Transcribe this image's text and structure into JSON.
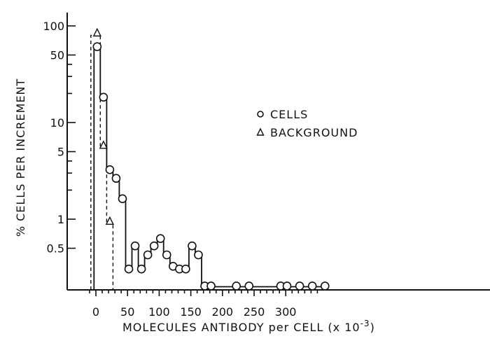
{
  "chart_data": {
    "type": "line",
    "xlabel_main": "MOLECULES ANTIBODY per CELL (x 10",
    "xlabel_exp": "-3",
    "xlabel_close": ")",
    "ylabel": "% CELLS PER INCREMENT",
    "x_scale": "linear",
    "y_scale": "log",
    "xlim": [
      -15,
      360
    ],
    "ylim": [
      0.2,
      200
    ],
    "x_ticks": [
      0,
      50,
      100,
      150,
      200,
      250,
      300
    ],
    "x_tick_labels": [
      "0",
      "50",
      "100",
      "150",
      "200",
      "250",
      "300"
    ],
    "x_minor_ticks": [
      -10,
      10,
      20,
      30,
      40,
      60,
      70,
      80,
      90,
      110,
      120,
      130,
      140,
      160,
      170,
      180,
      190,
      210,
      220,
      230,
      240,
      260,
      270,
      280,
      290,
      310,
      320,
      330,
      340,
      350
    ],
    "y_ticks": [
      0.5,
      1,
      5,
      10,
      50,
      100
    ],
    "y_tick_labels": [
      "0.5",
      "1",
      "5",
      "10",
      "50",
      "100"
    ],
    "y_minor_ticks": [
      2,
      3,
      4,
      20,
      30,
      40,
      200
    ],
    "step_width": 10,
    "series": [
      {
        "name": "CELLS",
        "marker": "circle",
        "style": "solid-step",
        "x": [
          2,
          12,
          22,
          32,
          42,
          52,
          62,
          72,
          82,
          92,
          102,
          112,
          122,
          132,
          142,
          152,
          162,
          172,
          182,
          222,
          242,
          292,
          302,
          322,
          342,
          362
        ],
        "values": [
          60,
          18,
          3.2,
          2.6,
          1.6,
          0.3,
          0.52,
          0.3,
          0.42,
          0.52,
          0.62,
          0.42,
          0.32,
          0.3,
          0.3,
          0.52,
          0.42,
          0.2,
          0.2,
          0.2,
          0.2,
          0.2,
          0.2,
          0.2,
          0.2,
          0.2
        ]
      },
      {
        "name": "BACKGROUND",
        "marker": "triangle",
        "style": "dashed-step",
        "x": [
          2,
          12,
          22
        ],
        "values": [
          80,
          5.5,
          0.9
        ]
      }
    ],
    "legend": {
      "position": "center-right",
      "entries": [
        {
          "symbol": "o",
          "label": "CELLS"
        },
        {
          "symbol": "Δ",
          "label": "BACKGROUND"
        }
      ]
    },
    "grid": false
  }
}
